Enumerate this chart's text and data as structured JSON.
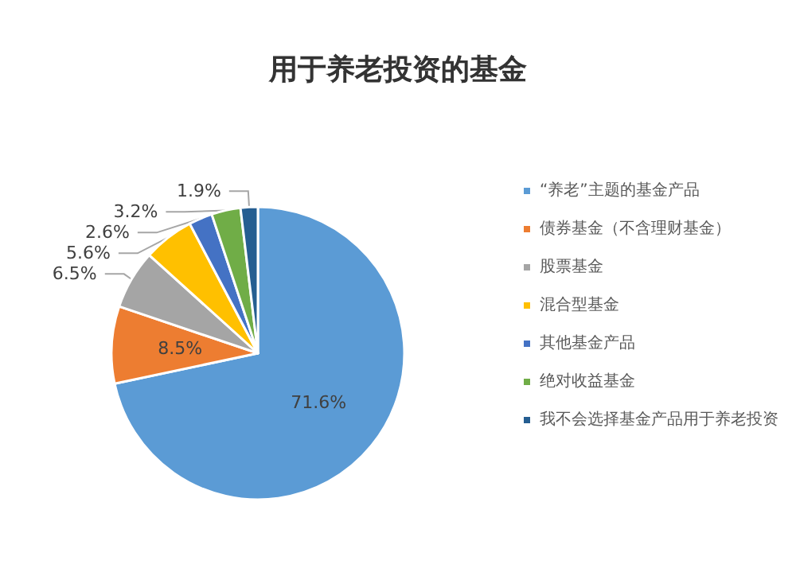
{
  "chart_data": {
    "type": "pie",
    "title": "用于养老投资的基金",
    "categories": [
      "“养老”主题的基金产品",
      "债券基金（不含理财基金）",
      "股票基金",
      "混合型基金",
      "其他基金产品",
      "绝对收益基金",
      "我不会选择基金产品用于养老投资"
    ],
    "values": [
      71.6,
      8.5,
      6.5,
      5.6,
      2.6,
      3.2,
      1.9
    ],
    "colors": [
      "#5b9bd5",
      "#ed7d31",
      "#a5a5a5",
      "#ffc000",
      "#4472c4",
      "#70ad47",
      "#255e91"
    ],
    "value_labels": [
      "71.6%",
      "8.5%",
      "6.5%",
      "5.6%",
      "2.6%",
      "3.2%",
      "1.9%"
    ],
    "legend": "right"
  }
}
